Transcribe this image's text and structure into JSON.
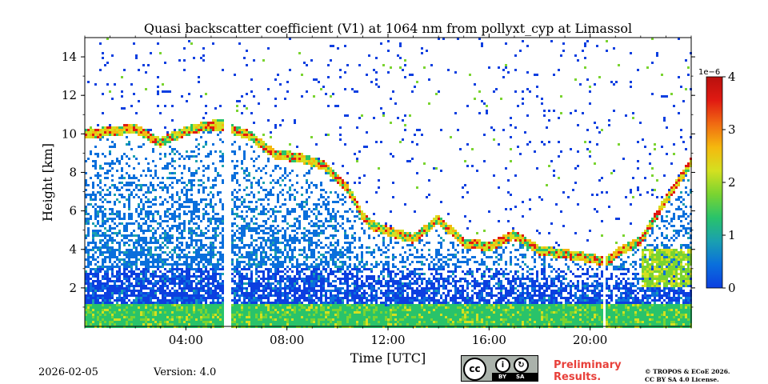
{
  "chart_data": {
    "type": "heatmap",
    "title": "Quasi backscatter coefficient (V1) at 1064 nm from pollyxt_cyp at Limassol",
    "xlabel": "Time [UTC]",
    "ylabel": "Height [km]",
    "xlim_hours": [
      0,
      24
    ],
    "ylim_km": [
      0,
      15
    ],
    "x_ticks": [
      {
        "hour": 4,
        "label": "04:00"
      },
      {
        "hour": 8,
        "label": "08:00"
      },
      {
        "hour": 12,
        "label": "12:00"
      },
      {
        "hour": 16,
        "label": "16:00"
      },
      {
        "hour": 20,
        "label": "20:00"
      }
    ],
    "y_ticks": [
      {
        "km": 2,
        "label": "2"
      },
      {
        "km": 4,
        "label": "4"
      },
      {
        "km": 6,
        "label": "6"
      },
      {
        "km": 8,
        "label": "8"
      },
      {
        "km": 10,
        "label": "10"
      },
      {
        "km": 12,
        "label": "12"
      },
      {
        "km": 14,
        "label": "14"
      }
    ],
    "colorbar": {
      "label_exponent": "1e−6",
      "range": [
        0,
        4
      ],
      "ticks": [
        {
          "value": 0,
          "label": "0"
        },
        {
          "value": 1,
          "label": "1"
        },
        {
          "value": 2,
          "label": "2"
        },
        {
          "value": 3,
          "label": "3"
        },
        {
          "value": 4,
          "label": "4"
        }
      ],
      "colormap": [
        "#0c3fe0",
        "#0a6fdc",
        "#1aa0b0",
        "#29c36a",
        "#7ad431",
        "#d4e020",
        "#f5b80e",
        "#f06a12",
        "#e01a12",
        "#b8100e"
      ]
    },
    "data_gaps_hours": [
      [
        5.55,
        5.75
      ],
      [
        20.55,
        20.65
      ]
    ],
    "aerosol_top_km": [
      [
        0,
        10.0
      ],
      [
        1,
        10.2
      ],
      [
        2,
        10.3
      ],
      [
        3,
        9.6
      ],
      [
        4,
        10.2
      ],
      [
        5,
        10.5
      ],
      [
        5.55,
        10.5
      ],
      [
        5.75,
        10.3
      ],
      [
        6.5,
        10.0
      ],
      [
        7.5,
        9.0
      ],
      [
        8.5,
        8.8
      ],
      [
        9.5,
        8.4
      ],
      [
        10.5,
        7.0
      ],
      [
        11,
        5.8
      ],
      [
        11.5,
        5.2
      ],
      [
        12,
        5.0
      ],
      [
        13,
        4.6
      ],
      [
        14,
        5.6
      ],
      [
        15,
        4.4
      ],
      [
        16,
        4.2
      ],
      [
        17,
        4.8
      ],
      [
        18,
        4.0
      ],
      [
        19,
        3.8
      ],
      [
        20,
        3.6
      ],
      [
        20.55,
        3.4
      ],
      [
        20.65,
        3.4
      ],
      [
        21,
        3.8
      ],
      [
        22,
        4.5
      ],
      [
        23,
        6.6
      ],
      [
        24,
        8.6
      ]
    ],
    "dust_layer_top_km": [
      [
        0,
        1.1
      ],
      [
        4,
        1.2
      ],
      [
        12,
        1.1
      ],
      [
        20,
        1.2
      ],
      [
        24,
        1.2
      ]
    ],
    "elevated_layer_km": {
      "start_hour": 22,
      "end_hour": 24,
      "bottom": 2.0,
      "top": 4.0
    }
  },
  "footer": {
    "date": "2026-02-05",
    "version": "Version: 4.0",
    "preliminary_line1": "Preliminary",
    "preliminary_line2": "Results.",
    "copyright_line1": "© TROPOS & ECoE 2026.",
    "copyright_line2": "CC BY SA 4.0 License.",
    "license_badge": {
      "c1": "cc",
      "c2": "i",
      "c3": "↻",
      "by": "BY",
      "sa": "SA"
    }
  }
}
